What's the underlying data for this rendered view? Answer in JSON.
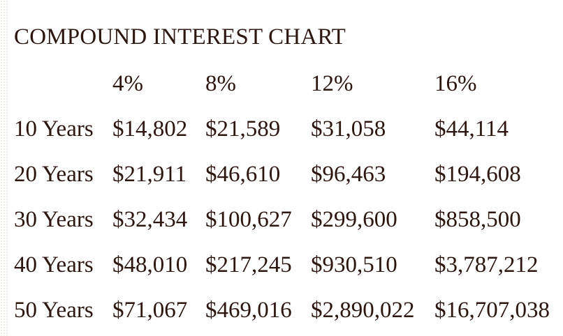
{
  "page": {
    "colors": {
      "text": "#2D1510",
      "background": "#FFFFFF",
      "edge_texture_dot": "#E9E8E4"
    }
  },
  "chart_data": {
    "type": "table",
    "title": "COMPOUND INTEREST CHART",
    "column_headers": [
      "4%",
      "8%",
      "12%",
      "16%"
    ],
    "rows": [
      {
        "label": "10 Years",
        "values": [
          "$14,802",
          "$21,589",
          "$31,058",
          "$44,114"
        ]
      },
      {
        "label": "20 Years",
        "values": [
          "$21,911",
          "$46,610",
          "$96,463",
          "$194,608"
        ]
      },
      {
        "label": "30 Years",
        "values": [
          "$32,434",
          "$100,627",
          "$299,600",
          "$858,500"
        ]
      },
      {
        "label": "40 Years",
        "values": [
          "$48,010",
          "$217,245",
          "$930,510",
          "$3,787,212"
        ]
      },
      {
        "label": "50 Years",
        "values": [
          "$71,067",
          "$469,016",
          "$2,890,022",
          "$16,707,038"
        ]
      }
    ]
  }
}
